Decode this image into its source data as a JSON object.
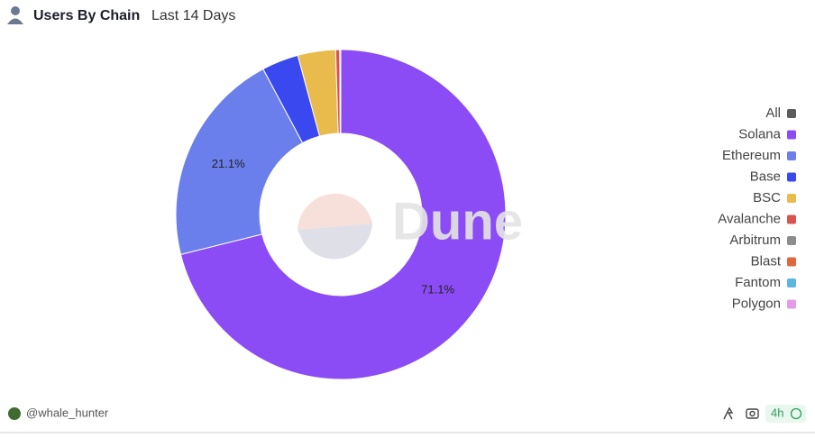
{
  "chart_data": {
    "type": "pie",
    "title": "Users By Chain",
    "subtitle": "Last 14 Days",
    "donut": true,
    "legend": "right",
    "series": [
      {
        "name": "All",
        "color": "#5c5c5c",
        "values": [
          0
        ]
      },
      {
        "name": "Solana",
        "color": "#8b4cf5",
        "values": [
          71.1
        ],
        "value_labels": [
          "71.1%"
        ]
      },
      {
        "name": "Ethereum",
        "color": "#6b7fec",
        "values": [
          21.1
        ],
        "value_labels": [
          "21.1%"
        ]
      },
      {
        "name": "Base",
        "color": "#3a48ef",
        "values": [
          3.6
        ]
      },
      {
        "name": "BSC",
        "color": "#e8bb4c",
        "values": [
          3.7
        ]
      },
      {
        "name": "Avalanche",
        "color": "#d9534f",
        "values": [
          0.4
        ]
      },
      {
        "name": "Arbitrum",
        "color": "#8c8c8c",
        "values": [
          0
        ]
      },
      {
        "name": "Blast",
        "color": "#e0673e",
        "values": [
          0.1
        ]
      },
      {
        "name": "Fantom",
        "color": "#5bb6e0",
        "values": [
          0
        ]
      },
      {
        "name": "Polygon",
        "color": "#e59be8",
        "values": [
          0
        ]
      }
    ]
  },
  "watermark": "Dune",
  "footer": {
    "author": "@whale_hunter",
    "age": "4h"
  }
}
